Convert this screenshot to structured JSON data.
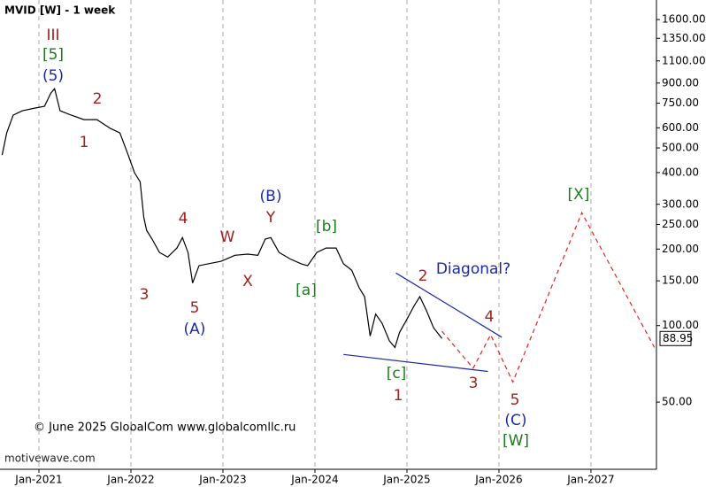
{
  "chart_data": {
    "type": "line",
    "title": "MVID [W] - 1 week",
    "copyright": "© June 2025 GlobalCom www.globalcomllc.ru",
    "watermark": "motivewave.com",
    "log_scale": true,
    "grid": "x",
    "xlim": [
      2020.577,
      2027.712
    ],
    "xticks": [
      {
        "value": 2021,
        "label": "Jan-2021"
      },
      {
        "value": 2022,
        "label": "Jan-2022"
      },
      {
        "value": 2023,
        "label": "Jan-2023"
      },
      {
        "value": 2024,
        "label": "Jan-2024"
      },
      {
        "value": 2025,
        "label": "Jan-2025"
      },
      {
        "value": 2026,
        "label": "Jan-2026"
      },
      {
        "value": 2027,
        "label": "Jan-2027"
      }
    ],
    "ylim": [
      27.2,
      1910
    ],
    "yticks": [
      {
        "value": 50,
        "label": "50.00"
      },
      {
        "value": 100,
        "label": "100.00"
      },
      {
        "value": 150,
        "label": "150.00"
      },
      {
        "value": 200,
        "label": "200.00"
      },
      {
        "value": 250,
        "label": "250.00"
      },
      {
        "value": 300,
        "label": "300.00"
      },
      {
        "value": 400,
        "label": "400.00"
      },
      {
        "value": 500,
        "label": "500.00"
      },
      {
        "value": 600,
        "label": "600.00"
      },
      {
        "value": 750,
        "label": "750.00"
      },
      {
        "value": 900,
        "label": "900.00"
      },
      {
        "value": 1100,
        "label": "1100.00"
      },
      {
        "value": 1350,
        "label": "1350.00"
      },
      {
        "value": 1600,
        "label": "1600.00"
      }
    ],
    "last_price": 88.95,
    "series": [
      {
        "color": "#000000",
        "dash": false,
        "x": [
          2020.6,
          2020.65,
          2020.72,
          2020.82,
          2020.96,
          2021.06,
          2021.13,
          2021.17,
          2021.23,
          2021.35,
          2021.49,
          2021.63,
          2021.78,
          2021.88,
          2021.97,
          2022.04,
          2022.1,
          2022.14,
          2022.17,
          2022.23,
          2022.31,
          2022.4,
          2022.5,
          2022.56,
          2022.62,
          2022.67,
          2022.74,
          2022.84,
          2022.98,
          2023.13,
          2023.27,
          2023.38,
          2023.46,
          2023.52,
          2023.61,
          2023.73,
          2023.85,
          2023.92,
          2024.02,
          2024.12,
          2024.23,
          2024.31,
          2024.4,
          2024.48,
          2024.54,
          2024.6,
          2024.66,
          2024.73,
          2024.81,
          2024.87,
          2024.92,
          2025.0,
          2025.08,
          2025.14,
          2025.21,
          2025.29,
          2025.36,
          2025.38
        ],
        "values": [
          469,
          573,
          673,
          700,
          718,
          729,
          822,
          855,
          700,
          673,
          646,
          646,
          596,
          573,
          469,
          399,
          368,
          267,
          237,
          219,
          194,
          186,
          202,
          222,
          194,
          147,
          172,
          175,
          179,
          189,
          191,
          189,
          219,
          222,
          194,
          183,
          175,
          172,
          194,
          202,
          202,
          175,
          165,
          141,
          130,
          91,
          111,
          102,
          87,
          82,
          94,
          106,
          120,
          130,
          115,
          98,
          91,
          89
        ]
      },
      {
        "color": "#e8231f",
        "dash": true,
        "x": [
          2025.38,
          2025.72,
          2025.91,
          2026.15,
          2026.9,
          2027.69
        ],
        "values": [
          95,
          68,
          92,
          60,
          278,
          82
        ]
      },
      {
        "color": "#1c2aa0",
        "dash": false,
        "x": [
          2024.88,
          2026.03
        ],
        "values": [
          161,
          90
        ]
      },
      {
        "color": "#1c2aa0",
        "dash": false,
        "x": [
          2024.31,
          2025.88
        ],
        "values": [
          77,
          66
        ]
      }
    ],
    "annotations": [
      {
        "text": "III",
        "color": "#a0221e"
      },
      {
        "text": "[5]",
        "color": "#1f7a1f"
      },
      {
        "text": "(5)",
        "color": "#1c2aa0"
      },
      {
        "text": "2",
        "color": "#a0221e"
      },
      {
        "text": "1",
        "color": "#a0221e"
      },
      {
        "text": "3",
        "color": "#a0221e"
      },
      {
        "text": "4",
        "color": "#a0221e"
      },
      {
        "text": "5",
        "color": "#a0221e"
      },
      {
        "text": "(A)",
        "color": "#1c2aa0"
      },
      {
        "text": "W",
        "color": "#a0221e"
      },
      {
        "text": "X",
        "color": "#a0221e"
      },
      {
        "text": "(B)",
        "color": "#1c2aa0"
      },
      {
        "text": "Y",
        "color": "#a0221e"
      },
      {
        "text": "[b]",
        "color": "#1f7a1f"
      },
      {
        "text": "[a]",
        "color": "#1f7a1f"
      },
      {
        "text": "Diagonal?",
        "color": "#1c2aa0"
      },
      {
        "text": "2",
        "color": "#a0221e"
      },
      {
        "text": "4",
        "color": "#a0221e"
      },
      {
        "text": "3",
        "color": "#a0221e"
      },
      {
        "text": "[c]",
        "color": "#1f7a1f"
      },
      {
        "text": "1",
        "color": "#a0221e"
      },
      {
        "text": "5",
        "color": "#a0221e"
      },
      {
        "text": "(C)",
        "color": "#1c2aa0"
      },
      {
        "text": "[W]",
        "color": "#1f7a1f"
      },
      {
        "text": "[X]",
        "color": "#1f7a1f"
      }
    ]
  }
}
